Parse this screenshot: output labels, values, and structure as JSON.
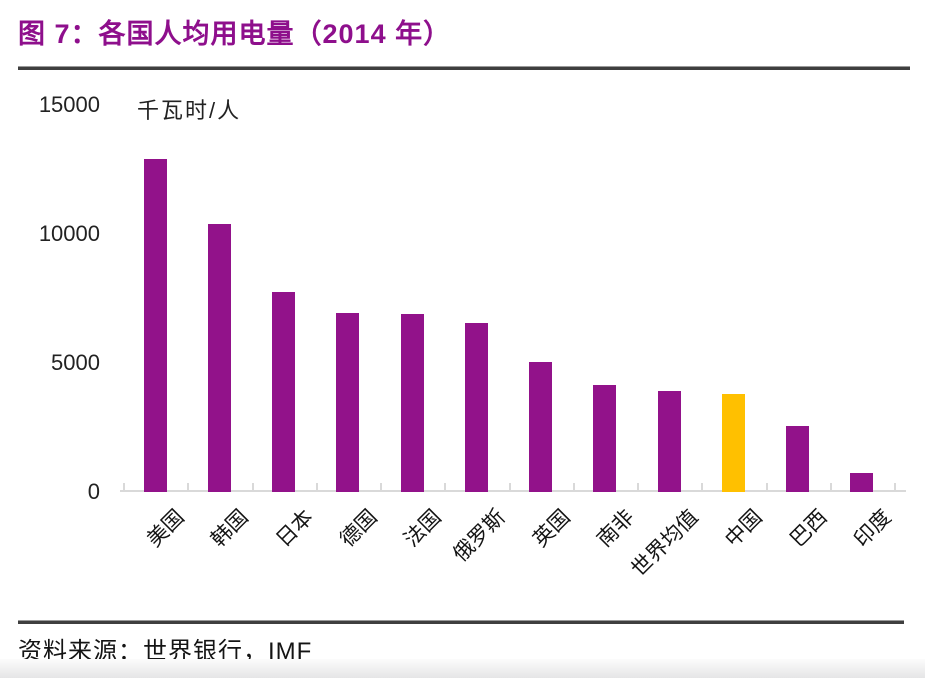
{
  "header": {
    "title": "图 7：各国人均用电量（2014 年）"
  },
  "chart_data": {
    "type": "bar",
    "title": "图 7：各国人均用电量（2014 年）",
    "unit_label": "千瓦时/人",
    "categories": [
      "美国",
      "韩国",
      "日本",
      "德国",
      "法国",
      "俄罗斯",
      "英国",
      "南非",
      "世界均值",
      "中国",
      "巴西",
      "印度"
    ],
    "values": [
      12900,
      10400,
      7750,
      6950,
      6900,
      6550,
      5050,
      4150,
      3900,
      3800,
      2550,
      750
    ],
    "highlight_category": "中国",
    "highlight_index": 9,
    "bar_color": "#92128A",
    "highlight_color": "#FFC000",
    "xlabel": "",
    "ylabel": "千瓦时/人",
    "ylim": [
      0,
      15000
    ],
    "yticks": [
      0,
      5000,
      10000,
      15000
    ],
    "grid": false,
    "legend": "none",
    "axis_line_color": "#D9D9D9"
  },
  "footer": {
    "source": "资料来源：世界银行，IMF"
  }
}
